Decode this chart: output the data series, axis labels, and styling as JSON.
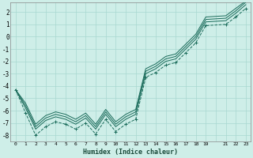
{
  "xlabel": "Humidex (Indice chaleur)",
  "bg_color": "#ceeee8",
  "grid_color": "#a8d8d0",
  "line_color": "#1a6b5a",
  "xlim": [
    -0.5,
    23.5
  ],
  "ylim": [
    -8.5,
    2.8
  ],
  "yticks": [
    2,
    1,
    0,
    -1,
    -2,
    -3,
    -4,
    -5,
    -6,
    -7,
    -8
  ],
  "xtick_labels": [
    "0",
    "1",
    "2",
    "3",
    "4",
    "5",
    "6",
    "7",
    "8",
    "9",
    "10",
    "11",
    "12",
    "13",
    "14",
    "15",
    "16",
    "17",
    "18",
    "19",
    "",
    "21",
    "22",
    "23"
  ],
  "series_dashed_x": [
    0,
    1,
    2,
    3,
    4,
    5,
    6,
    7,
    8,
    9,
    10,
    11,
    12,
    13,
    14,
    15,
    16,
    17,
    18,
    19,
    21,
    22,
    23
  ],
  "series_dashed_y": [
    -4.3,
    -6.2,
    -8.0,
    -7.3,
    -6.9,
    -7.1,
    -7.5,
    -7.0,
    -7.9,
    -6.7,
    -7.7,
    -7.1,
    -6.7,
    -3.3,
    -2.9,
    -2.3,
    -2.1,
    -1.3,
    -0.5,
    0.9,
    1.0,
    1.6,
    2.3
  ],
  "series_solid1_x": [
    0,
    1,
    2,
    3,
    4,
    5,
    6,
    7,
    8,
    9,
    10,
    11,
    12,
    13,
    14,
    15,
    16,
    17,
    18,
    19,
    21,
    22,
    23
  ],
  "series_solid1_y": [
    -4.3,
    -5.8,
    -7.5,
    -6.8,
    -6.5,
    -6.7,
    -7.1,
    -6.6,
    -7.5,
    -6.3,
    -7.3,
    -6.7,
    -6.3,
    -3.0,
    -2.6,
    -2.0,
    -1.8,
    -1.0,
    -0.2,
    1.2,
    1.3,
    1.9,
    2.6
  ],
  "series_solid2_x": [
    0,
    1,
    2,
    3,
    4,
    5,
    6,
    7,
    8,
    9,
    10,
    11,
    12,
    13,
    14,
    15,
    16,
    17,
    18,
    19,
    21,
    22,
    23
  ],
  "series_solid2_y": [
    -4.3,
    -5.6,
    -7.3,
    -6.6,
    -6.3,
    -6.5,
    -6.9,
    -6.4,
    -7.3,
    -6.1,
    -7.1,
    -6.5,
    -6.1,
    -2.8,
    -2.4,
    -1.8,
    -1.6,
    -0.8,
    0.0,
    1.4,
    1.5,
    2.1,
    2.8
  ],
  "series_solid3_x": [
    0,
    1,
    2,
    3,
    4,
    5,
    6,
    7,
    8,
    9,
    10,
    11,
    12,
    13,
    14,
    15,
    16,
    17,
    18,
    19,
    21,
    22,
    23
  ],
  "series_solid3_y": [
    -4.3,
    -5.4,
    -7.1,
    -6.4,
    -6.1,
    -6.3,
    -6.7,
    -6.2,
    -7.1,
    -5.9,
    -6.9,
    -6.3,
    -5.9,
    -2.6,
    -2.2,
    -1.6,
    -1.4,
    -0.6,
    0.2,
    1.6,
    1.7,
    2.3,
    2.9
  ]
}
